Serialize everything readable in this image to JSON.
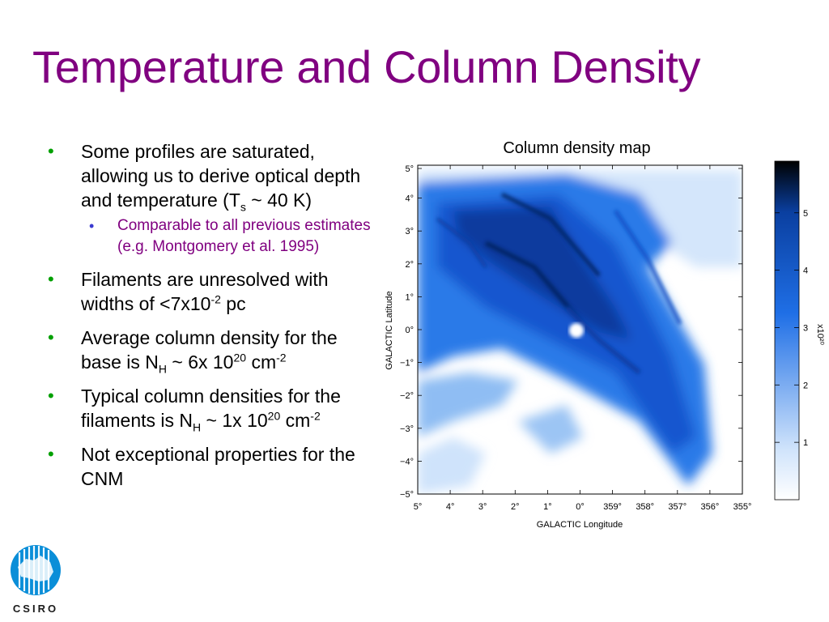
{
  "slide": {
    "title": "Temperature and Column Density",
    "bullets": [
      {
        "parts": [
          "Some profiles are saturated, allowing us to derive optical depth and temperature (T",
          "s",
          " ~ 40 K)"
        ],
        "sub": [
          "Comparable to all previous estimates (e.g. Montgomery et al. 1995)"
        ]
      },
      {
        "parts": [
          "Filaments are unresolved with widths of <7x10",
          "-2",
          " pc"
        ]
      },
      {
        "parts": [
          "Average column density for the base is N",
          "H",
          " ~ 6x 10",
          "20",
          " cm",
          "-2",
          ""
        ]
      },
      {
        "parts": [
          "Typical column densities for the filaments is N",
          "H",
          " ~ 1x 10",
          "20",
          " cm",
          "-2",
          ""
        ]
      },
      {
        "parts": [
          "Not exceptional properties for the CNM"
        ]
      }
    ]
  },
  "figure": {
    "caption": "Column density map",
    "xlabel": "GALACTIC Longitude",
    "ylabel": "GALACTIC Latitude",
    "x_ticks": [
      "5°",
      "4°",
      "3°",
      "2°",
      "1°",
      "0°",
      "359°",
      "358°",
      "357°",
      "356°",
      "355°"
    ],
    "y_ticks": [
      "5°",
      "4°",
      "3°",
      "2°",
      "1°",
      "0°",
      "−1°",
      "−2°",
      "−3°",
      "−4°",
      "−5°"
    ],
    "colorbar": {
      "ticks": [
        "1",
        "2",
        "3",
        "4",
        "5"
      ],
      "label": "x10²⁰",
      "colors": [
        "#ffffff",
        "#1f6fe6",
        "#000000"
      ]
    }
  },
  "logo": {
    "text": "CSIRO"
  }
}
